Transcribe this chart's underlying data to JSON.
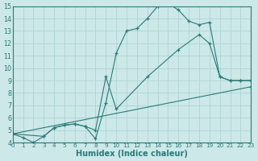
{
  "xlabel": "Humidex (Indice chaleur)",
  "xlim": [
    0,
    23
  ],
  "ylim": [
    4,
    15
  ],
  "yticks": [
    4,
    5,
    6,
    7,
    8,
    9,
    10,
    11,
    12,
    13,
    14,
    15
  ],
  "xticks": [
    0,
    1,
    2,
    3,
    4,
    5,
    6,
    7,
    8,
    9,
    10,
    11,
    12,
    13,
    14,
    15,
    16,
    17,
    18,
    19,
    20,
    21,
    22,
    23
  ],
  "bg_color": "#cce8e8",
  "line_color": "#2a7a7a",
  "grid_color": "#b0d4d4",
  "line1_x": [
    0,
    1,
    2,
    3,
    4,
    5,
    6,
    7,
    8,
    9,
    10,
    11,
    12,
    13,
    14,
    15,
    16,
    17,
    18,
    19,
    20,
    21,
    22,
    23
  ],
  "line1_y": [
    4.7,
    4.4,
    4.0,
    4.5,
    5.2,
    5.4,
    5.5,
    5.3,
    4.3,
    7.2,
    11.2,
    13.0,
    13.2,
    14.0,
    15.0,
    15.2,
    14.7,
    13.8,
    13.5,
    13.7,
    9.3,
    9.0,
    9.0,
    9.0
  ],
  "line2_x": [
    0,
    3,
    4,
    5,
    6,
    7,
    8,
    9,
    10,
    13,
    16,
    18,
    19,
    20,
    21,
    22,
    23
  ],
  "line2_y": [
    4.7,
    4.5,
    5.2,
    5.4,
    5.5,
    5.3,
    5.0,
    9.3,
    6.7,
    9.3,
    11.5,
    12.7,
    12.0,
    9.3,
    9.0,
    9.0,
    9.0
  ],
  "line3_x": [
    0,
    23
  ],
  "line3_y": [
    4.7,
    8.5
  ]
}
